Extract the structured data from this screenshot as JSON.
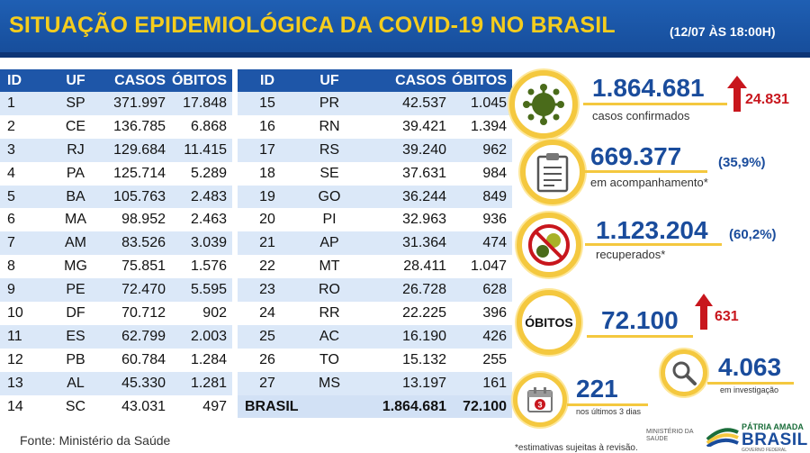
{
  "header": {
    "title": "SITUAÇÃO EPIDEMIOLÓGICA DA COVID-19 NO BRASIL",
    "date": "(12/07 ÀS 18:00H)"
  },
  "table": {
    "columns": [
      "ID",
      "UF",
      "CASOS",
      "ÓBITOS"
    ],
    "left_rows": [
      [
        "1",
        "SP",
        "371.997",
        "17.848"
      ],
      [
        "2",
        "CE",
        "136.785",
        "6.868"
      ],
      [
        "3",
        "RJ",
        "129.684",
        "11.415"
      ],
      [
        "4",
        "PA",
        "125.714",
        "5.289"
      ],
      [
        "5",
        "BA",
        "105.763",
        "2.483"
      ],
      [
        "6",
        "MA",
        "98.952",
        "2.463"
      ],
      [
        "7",
        "AM",
        "83.526",
        "3.039"
      ],
      [
        "8",
        "MG",
        "75.851",
        "1.576"
      ],
      [
        "9",
        "PE",
        "72.470",
        "5.595"
      ],
      [
        "10",
        "DF",
        "70.712",
        "902"
      ],
      [
        "11",
        "ES",
        "62.799",
        "2.003"
      ],
      [
        "12",
        "PB",
        "60.784",
        "1.284"
      ],
      [
        "13",
        "AL",
        "45.330",
        "1.281"
      ],
      [
        "14",
        "SC",
        "43.031",
        "497"
      ]
    ],
    "right_rows": [
      [
        "15",
        "PR",
        "42.537",
        "1.045"
      ],
      [
        "16",
        "RN",
        "39.421",
        "1.394"
      ],
      [
        "17",
        "RS",
        "39.240",
        "962"
      ],
      [
        "18",
        "SE",
        "37.631",
        "984"
      ],
      [
        "19",
        "GO",
        "36.244",
        "849"
      ],
      [
        "20",
        "PI",
        "32.963",
        "936"
      ],
      [
        "21",
        "AP",
        "31.364",
        "474"
      ],
      [
        "22",
        "MT",
        "28.411",
        "1.047"
      ],
      [
        "23",
        "RO",
        "26.728",
        "628"
      ],
      [
        "24",
        "RR",
        "22.225",
        "396"
      ],
      [
        "25",
        "AC",
        "16.190",
        "426"
      ],
      [
        "26",
        "TO",
        "15.132",
        "255"
      ],
      [
        "27",
        "MS",
        "13.197",
        "161"
      ]
    ],
    "total": {
      "label": "BRASIL",
      "casos": "1.864.681",
      "obitos": "72.100"
    }
  },
  "source": "Fonte: Ministério da Saúde",
  "stats": {
    "confirmed": {
      "value": "1.864.681",
      "delta": "24.831",
      "label": "casos confirmados"
    },
    "monitoring": {
      "value": "669.377",
      "pct": "(35,9%)",
      "label": "em acompanhamento*"
    },
    "recovered": {
      "value": "1.123.204",
      "pct": "(60,2%)",
      "label": "recuperados*"
    },
    "deaths": {
      "badge": "ÓBITOS",
      "value": "72.100",
      "delta": "631"
    },
    "investigation": {
      "value": "4.063",
      "label": "em investigação"
    },
    "last3days": {
      "value": "221",
      "label": "nos últimos 3 dias",
      "calendar_day": "3"
    }
  },
  "footnote": "*estimativas sujeitas à revisão.",
  "logos": {
    "ministerio": "MINISTÉRIO DA\nSAÚDE",
    "patria": "PÁTRIA AMADA",
    "brasil": "BRASIL",
    "governo": "GOVERNO FEDERAL"
  },
  "colors": {
    "header_blue": "#1e56a8",
    "accent_yellow": "#f4c83f",
    "alert_red": "#c8161d",
    "stat_blue": "#1a4c9c"
  }
}
